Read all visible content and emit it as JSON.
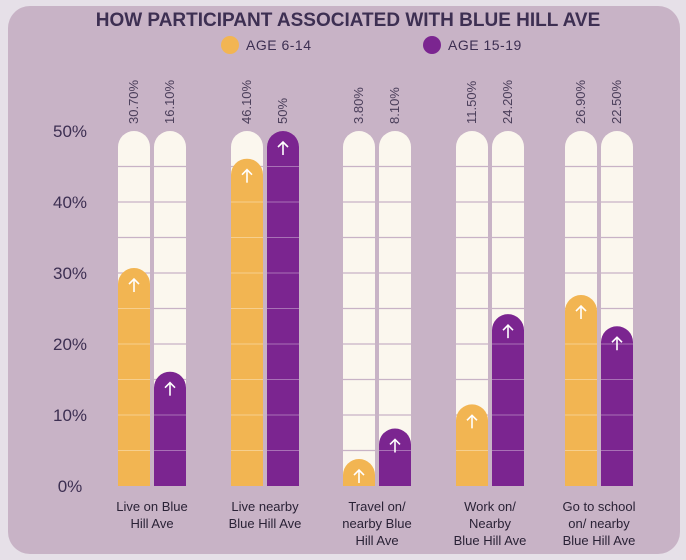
{
  "chart_data": {
    "type": "bar",
    "title": "HOW PARTICIPANT ASSOCIATED WITH BLUE HILL AVE",
    "ylim": [
      0,
      50
    ],
    "yticks": [
      "50%",
      "40%",
      "30%",
      "20%",
      "10%",
      "0%"
    ],
    "ytick_values": [
      50,
      40,
      30,
      20,
      10,
      0
    ],
    "legend_position": "top",
    "categories": [
      [
        "Live on Blue",
        "Hill Ave"
      ],
      [
        "Live nearby",
        "Blue Hill Ave"
      ],
      [
        "Travel on/",
        "nearby Blue",
        "Hill Ave"
      ],
      [
        "Work on/",
        "Nearby",
        "Blue Hill Ave"
      ],
      [
        "Go to school",
        "on/ nearby",
        "Blue Hill Ave"
      ]
    ],
    "series": [
      {
        "name": "AGE 6-14",
        "color": "#f2b552",
        "values": [
          30.7,
          46.1,
          3.8,
          11.5,
          26.9
        ],
        "labels": [
          "30.70%",
          "46.10%",
          "3.80%",
          "11.50%",
          "26.90%"
        ]
      },
      {
        "name": "AGE 15-19",
        "color": "#7b2590",
        "values": [
          16.1,
          50,
          8.1,
          24.2,
          22.5
        ],
        "labels": [
          "16.10%",
          "50%",
          "8.10%",
          "24.20%",
          "22.50%"
        ]
      }
    ],
    "track_color": "#fbf7ee",
    "background_color": "#c8b3c6",
    "text_color": "#3d2f52",
    "marker_icon": "arrow-up-icon"
  }
}
